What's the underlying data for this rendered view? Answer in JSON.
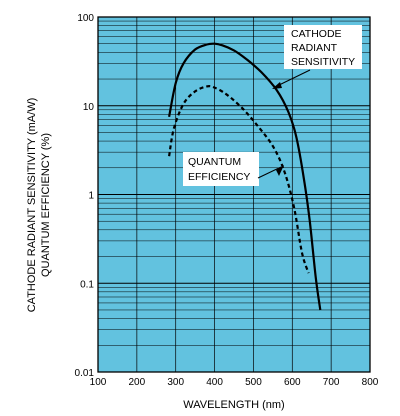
{
  "chart_data": {
    "type": "line",
    "xlabel": "WAVELENGTH (nm)",
    "ylabel_lines": [
      "CATHODE RADIANT SENSITIVITY (mA/W)",
      "QUANTUM EFFICIENCY (%)"
    ],
    "xlim": [
      100,
      800
    ],
    "ylim": [
      0.01,
      100
    ],
    "yscale": "log",
    "grid": true,
    "x_ticks": [
      "100",
      "200",
      "300",
      "400",
      "500",
      "600",
      "700",
      "800"
    ],
    "y_ticks": [
      "0.01",
      "0.1",
      "1",
      "10",
      "100"
    ],
    "background_color": "#62c2df",
    "line_color": "#000000",
    "series": [
      {
        "name": "CATHODE RADIANT SENSITIVITY",
        "style": "solid",
        "label_lines": [
          "CATHODE",
          "RADIANT",
          "SENSITIVITY"
        ],
        "points": [
          [
            283,
            7.5
          ],
          [
            300,
            18
          ],
          [
            320,
            30
          ],
          [
            350,
            43
          ],
          [
            380,
            49
          ],
          [
            400,
            50
          ],
          [
            420,
            48
          ],
          [
            450,
            42
          ],
          [
            480,
            34
          ],
          [
            520,
            24
          ],
          [
            560,
            15
          ],
          [
            590,
            8.5
          ],
          [
            610,
            4.5
          ],
          [
            630,
            1.5
          ],
          [
            645,
            0.5
          ],
          [
            660,
            0.12
          ],
          [
            672,
            0.05
          ]
        ]
      },
      {
        "name": "QUANTUM EFFICIENCY",
        "style": "dashed",
        "label_lines": [
          "QUANTUM",
          "EFFICIENCY"
        ],
        "points": [
          [
            283,
            2.7
          ],
          [
            295,
            5.5
          ],
          [
            320,
            10.5
          ],
          [
            350,
            14.5
          ],
          [
            380,
            16.5
          ],
          [
            400,
            16
          ],
          [
            430,
            13.5
          ],
          [
            470,
            9.5
          ],
          [
            510,
            6
          ],
          [
            550,
            3.5
          ],
          [
            580,
            1.8
          ],
          [
            605,
            0.7
          ],
          [
            625,
            0.22
          ],
          [
            642,
            0.13
          ]
        ]
      }
    ]
  }
}
